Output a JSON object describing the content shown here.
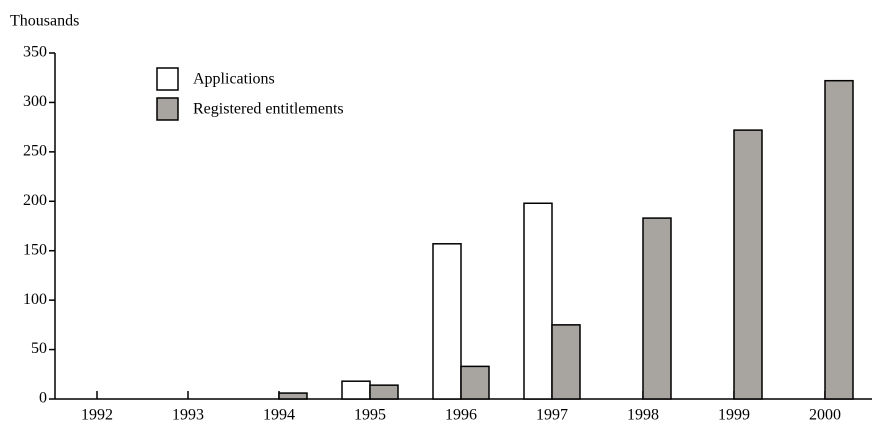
{
  "chart_data": {
    "type": "bar",
    "y_axis_label": "Thousands",
    "categories": [
      "1992",
      "1993",
      "1994",
      "1995",
      "1996",
      "1997",
      "1998",
      "1999",
      "2000"
    ],
    "series": [
      {
        "name": "Applications",
        "color": "#ffffff",
        "values": [
          null,
          null,
          null,
          18,
          157,
          198,
          null,
          null,
          null
        ]
      },
      {
        "name": "Registered entitlements",
        "color": "#a8a4a0",
        "values": [
          null,
          null,
          6,
          14,
          33,
          75,
          183,
          272,
          322
        ]
      }
    ],
    "ylim": [
      0,
      350
    ],
    "yticks": [
      0,
      50,
      100,
      150,
      200,
      250,
      300,
      350
    ],
    "legend": "top-left",
    "grid": false
  }
}
